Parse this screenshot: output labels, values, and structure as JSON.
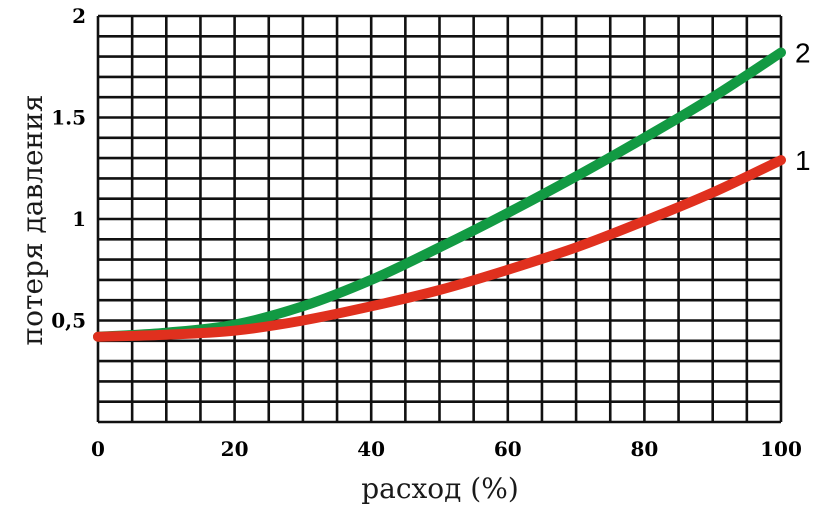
{
  "chart_data": {
    "type": "line",
    "title": "",
    "xlabel": "расход (%)",
    "ylabel": "потеря давления",
    "xlim": [
      0,
      100
    ],
    "ylim": [
      0,
      2
    ],
    "grid": true,
    "x_ticks": [
      {
        "value": 0,
        "label": "0"
      },
      {
        "value": 20,
        "label": "20"
      },
      {
        "value": 40,
        "label": "40"
      },
      {
        "value": 60,
        "label": "60"
      },
      {
        "value": 80,
        "label": "80"
      },
      {
        "value": 100,
        "label": "100"
      }
    ],
    "y_ticks": [
      {
        "value": 0.5,
        "label": "0,5"
      },
      {
        "value": 1,
        "label": "1"
      },
      {
        "value": 1.5,
        "label": "1.5"
      },
      {
        "value": 2,
        "label": "2"
      }
    ],
    "series": [
      {
        "name": "1",
        "color": "#e0301e",
        "x": [
          0,
          10,
          20,
          30,
          40,
          50,
          60,
          70,
          80,
          90,
          100
        ],
        "y": [
          0.42,
          0.43,
          0.45,
          0.5,
          0.57,
          0.65,
          0.75,
          0.86,
          0.99,
          1.13,
          1.29
        ]
      },
      {
        "name": "2",
        "color": "#129a43",
        "x": [
          0,
          10,
          20,
          30,
          40,
          50,
          60,
          70,
          80,
          90,
          100
        ],
        "y": [
          0.42,
          0.44,
          0.48,
          0.57,
          0.7,
          0.86,
          1.03,
          1.21,
          1.4,
          1.6,
          1.82
        ]
      }
    ]
  }
}
